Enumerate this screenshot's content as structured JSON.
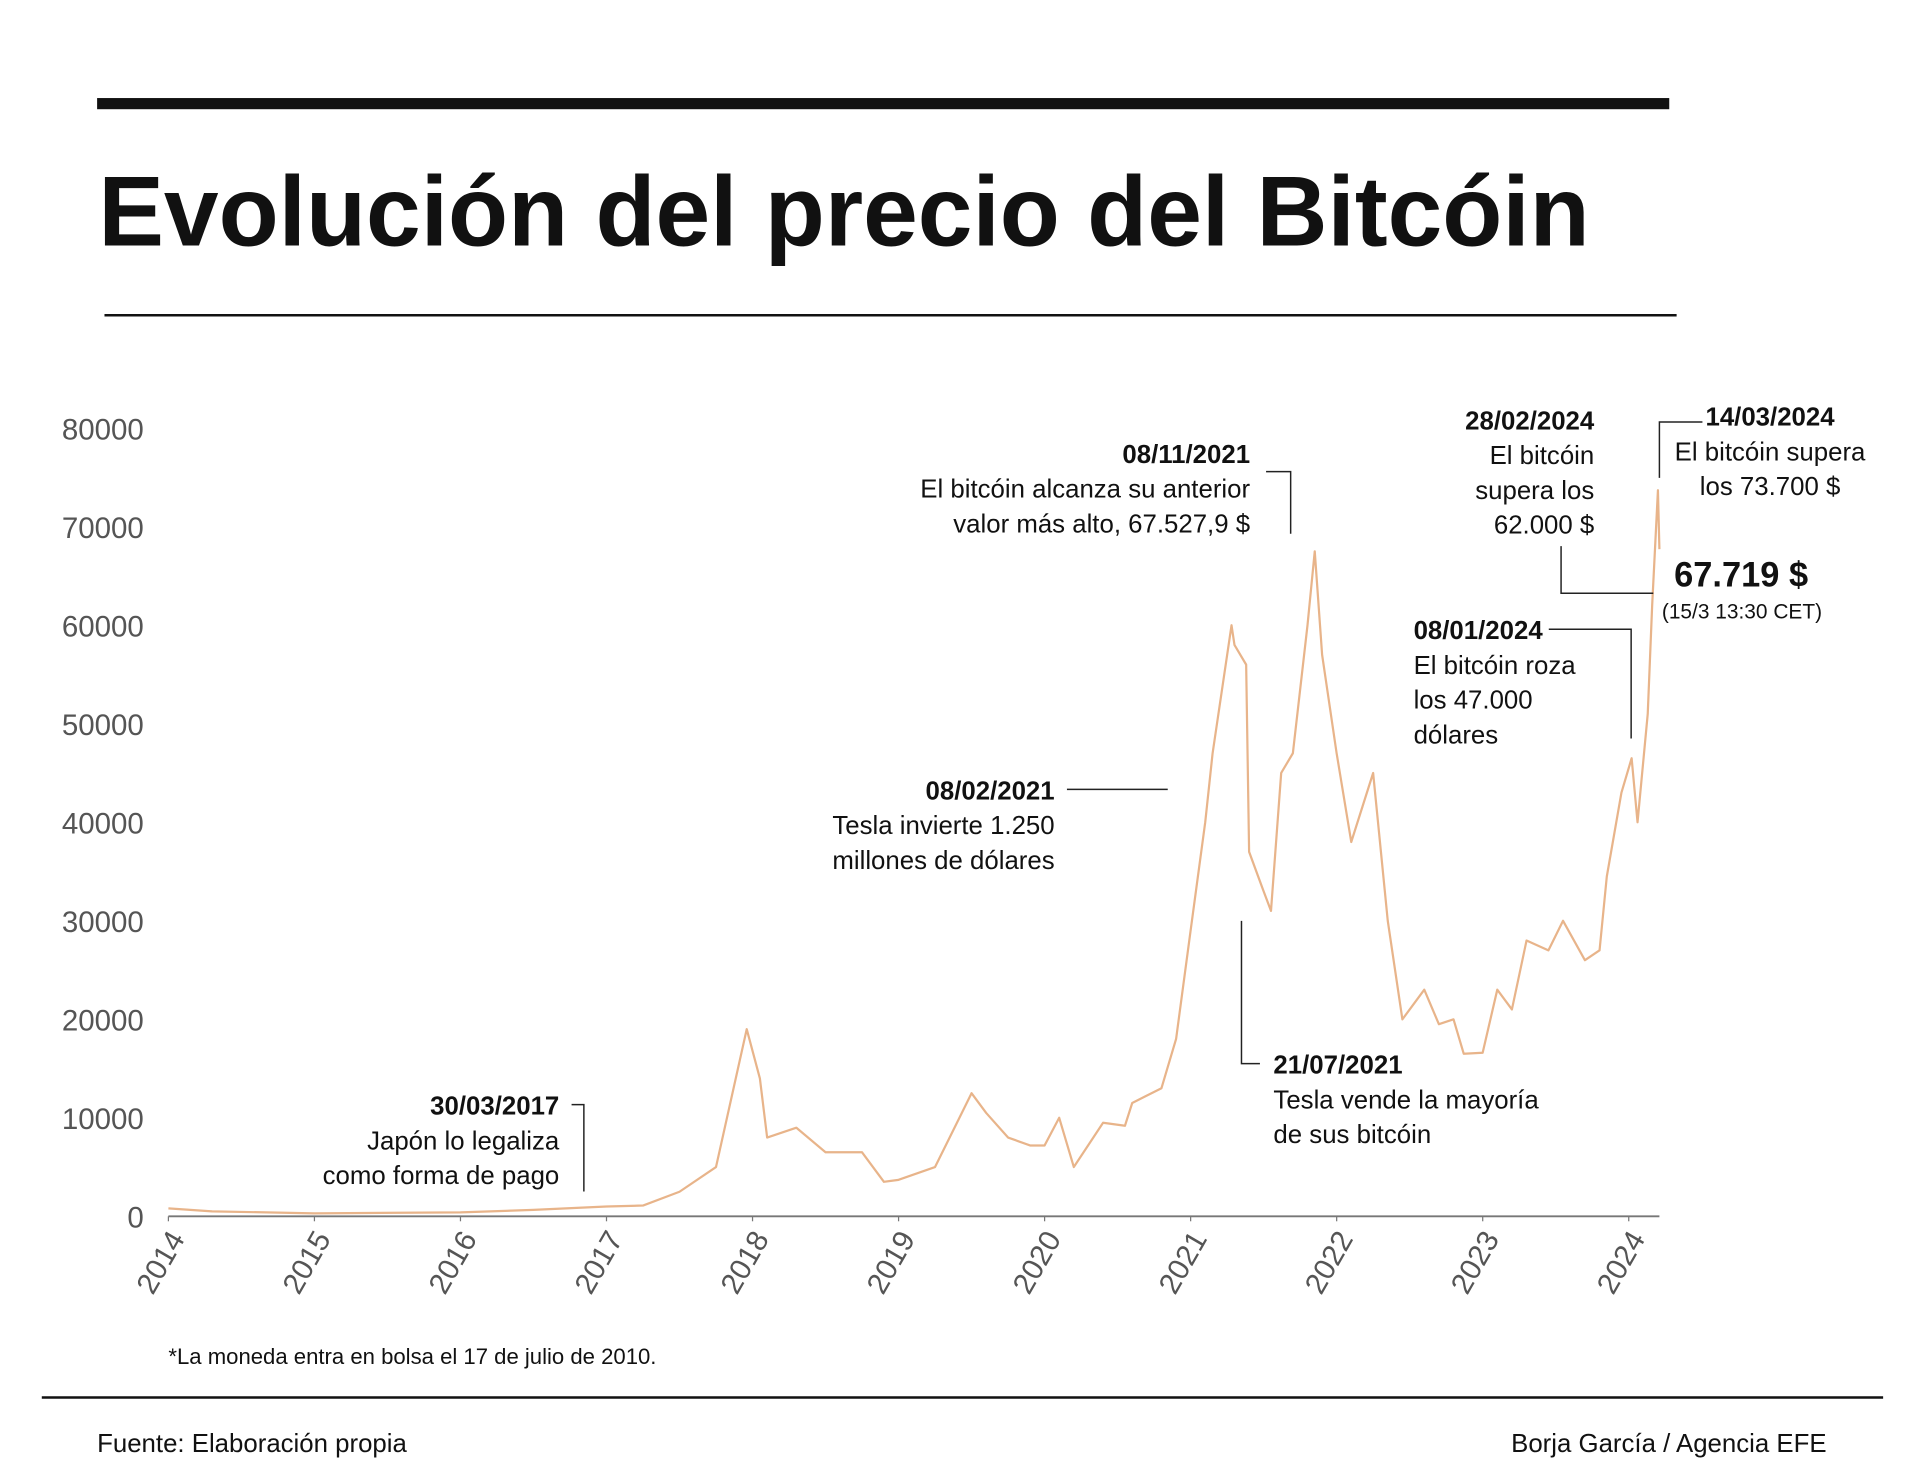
{
  "title": "Evolución del precio del Bitcóin",
  "footnote": "*La moneda entra en bolsa el 17 de julio de 2010.",
  "source": "Fuente: Elaboración propia",
  "credit": "Borja García / Agencia EFE",
  "chart_data": {
    "type": "line",
    "x": [
      2014.0,
      2014.3,
      2015.0,
      2016.0,
      2016.5,
      2017.0,
      2017.25,
      2017.5,
      2017.75,
      2017.96,
      2018.05,
      2018.1,
      2018.3,
      2018.5,
      2018.75,
      2018.9,
      2019.0,
      2019.25,
      2019.5,
      2019.6,
      2019.75,
      2019.9,
      2020.0,
      2020.1,
      2020.2,
      2020.4,
      2020.55,
      2020.6,
      2020.8,
      2020.9,
      2021.0,
      2021.1,
      2021.15,
      2021.28,
      2021.3,
      2021.38,
      2021.4,
      2021.5,
      2021.55,
      2021.62,
      2021.7,
      2021.8,
      2021.85,
      2021.9,
      2022.0,
      2022.1,
      2022.25,
      2022.35,
      2022.45,
      2022.6,
      2022.7,
      2022.8,
      2022.87,
      2023.0,
      2023.1,
      2023.2,
      2023.3,
      2023.45,
      2023.55,
      2023.7,
      2023.8,
      2023.85,
      2023.95,
      2024.02,
      2024.06,
      2024.13,
      2024.16,
      2024.2,
      2024.21
    ],
    "series": [
      {
        "color": "#e8b48a",
        "values": [
          800,
          500,
          300,
          400,
          650,
          1000,
          1100,
          2500,
          5000,
          19000,
          14000,
          8000,
          9000,
          6500,
          6500,
          3500,
          3700,
          5000,
          12500,
          10500,
          8000,
          7200,
          7200,
          10000,
          5000,
          9500,
          9200,
          11500,
          13000,
          18000,
          29000,
          40000,
          47000,
          60000,
          58000,
          56000,
          37000,
          33000,
          31000,
          45000,
          47000,
          60000,
          67500,
          57000,
          47000,
          38000,
          45000,
          30000,
          20000,
          23000,
          19500,
          20000,
          16500,
          16600,
          23000,
          21000,
          28000,
          27000,
          30000,
          26000,
          27000,
          34500,
          43000,
          46500,
          40000,
          51000,
          62000,
          73700,
          67719
        ]
      }
    ],
    "xlim": [
      2014,
      2024.21
    ],
    "xticks": [
      2014,
      2015,
      2016,
      2017,
      2018,
      2019,
      2020,
      2021,
      2022,
      2023,
      2024
    ],
    "ylim": [
      0,
      80000
    ],
    "yticks": [
      0,
      10000,
      20000,
      30000,
      40000,
      50000,
      60000,
      70000,
      80000
    ],
    "annotations": [
      {
        "date": "30/03/2017",
        "text": [
          "Japón lo legaliza",
          "como forma de pago"
        ]
      },
      {
        "date": "08/02/2021",
        "text": [
          "Tesla invierte 1.250",
          "millones de dólares"
        ]
      },
      {
        "date": "08/11/2021",
        "text": [
          "El bitcóin alcanza su anterior",
          "valor más alto, 67.527,9 $"
        ]
      },
      {
        "date": "21/07/2021",
        "text": [
          "Tesla vende la mayoría",
          "de sus bitcóin"
        ]
      },
      {
        "date": "28/02/2024",
        "text": [
          "El bitcóin",
          "supera los",
          "62.000 $"
        ]
      },
      {
        "date": "14/03/2024",
        "text": [
          "El bitcóin supera",
          "los 73.700 $"
        ]
      },
      {
        "date": "08/01/2024",
        "text": [
          "El bitcóin roza",
          "los 47.000",
          "dólares"
        ]
      }
    ],
    "highlight": {
      "value": 67719,
      "label": "67.719 $",
      "note": "(15/3 13:30 CET)"
    }
  }
}
